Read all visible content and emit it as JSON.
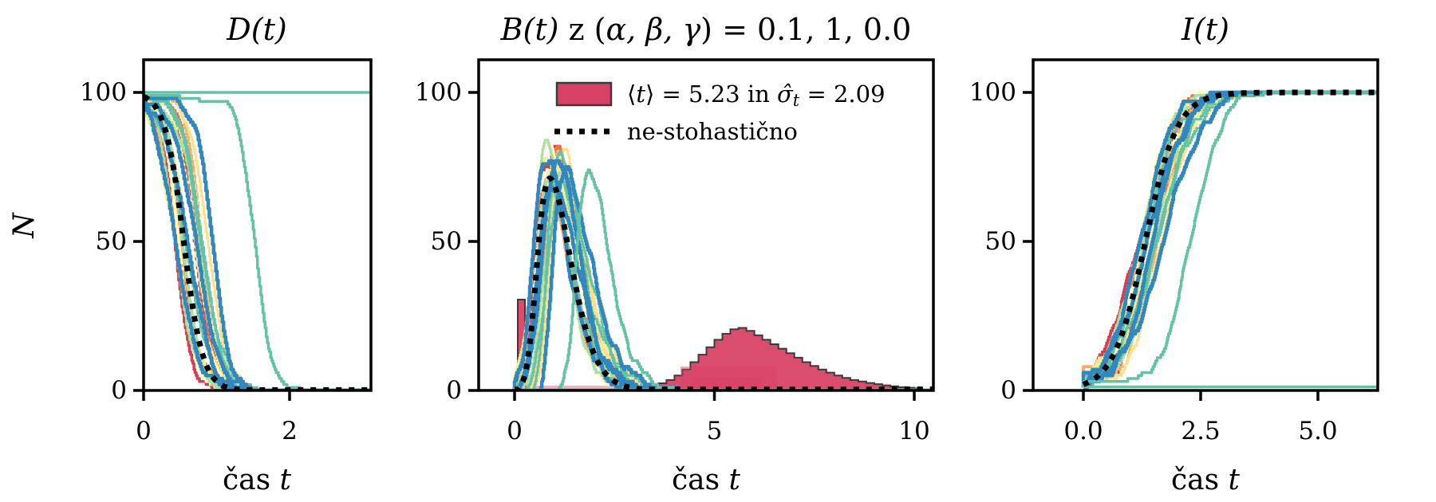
{
  "figure": {
    "background": "#ffffff"
  },
  "ylabel": "N",
  "chart_data": [
    {
      "id": "D",
      "type": "line",
      "title": "D(t)",
      "xlabel_parts": [
        "čas ",
        "t"
      ],
      "ylabel": "N",
      "xlim": [
        0,
        3.12
      ],
      "ylim": [
        0,
        110
      ],
      "xticks": [
        {
          "v": 0,
          "label": "0"
        },
        {
          "v": 2,
          "label": "2"
        }
      ],
      "yticks": [
        {
          "v": 0,
          "label": "0"
        },
        {
          "v": 50,
          "label": "50"
        },
        {
          "v": 100,
          "label": "100"
        }
      ],
      "deterministic_curve": [
        [
          0,
          98.6
        ],
        [
          0.25,
          91.0
        ],
        [
          0.5,
          59.5
        ],
        [
          0.75,
          17.7
        ],
        [
          1.0,
          3.0
        ],
        [
          1.25,
          0.5
        ],
        [
          1.5,
          0.1
        ],
        [
          2.0,
          0
        ],
        [
          2.5,
          0
        ],
        [
          3.0,
          0
        ]
      ]
    },
    {
      "id": "B",
      "type": "line+histogram",
      "title_parts": [
        "B(t)",
        " z (",
        "α, β, γ",
        ") = 0.1, 1, 0.0"
      ],
      "xlabel_parts": [
        "čas ",
        "t"
      ],
      "xlim": [
        -0.9,
        10.48
      ],
      "ylim": [
        0,
        110
      ],
      "xticks": [
        {
          "v": 0,
          "label": "0"
        },
        {
          "v": 5,
          "label": "5"
        },
        {
          "v": 10,
          "label": "10"
        }
      ],
      "yticks": [
        {
          "v": 0,
          "label": "0"
        },
        {
          "v": 50,
          "label": "50"
        },
        {
          "v": 100,
          "label": "100"
        }
      ],
      "deterministic_curve": [
        [
          0,
          1.0
        ],
        [
          0.25,
          4.9
        ],
        [
          0.5,
          32.2
        ],
        [
          0.75,
          66.6
        ],
        [
          1.0,
          68.9
        ],
        [
          1.25,
          54.7
        ],
        [
          1.5,
          37.0
        ],
        [
          2.0,
          10.6
        ],
        [
          2.5,
          3.0
        ],
        [
          3.0,
          0.7
        ],
        [
          4.0,
          0.1
        ],
        [
          5.0,
          0
        ],
        [
          6.0,
          0
        ],
        [
          8.0,
          0
        ],
        [
          10.0,
          0
        ]
      ],
      "histogram": {
        "mean": 5.23,
        "std": 2.09,
        "bin_start": 3.0,
        "bin_width": 0.2,
        "heights": [
          0.5,
          1,
          1.6,
          2.4,
          3.5,
          5,
          7,
          9.5,
          12,
          14.5,
          17,
          19,
          20.5,
          21,
          20,
          18.5,
          17,
          15.5,
          14,
          12.5,
          11,
          9.5,
          8.2,
          7,
          6,
          5,
          4.2,
          3.5,
          3,
          2.5,
          2.1,
          1.7,
          1.4,
          1.1,
          0.9,
          0.7
        ],
        "spike": {
          "x0": 0.08,
          "x1": 0.26,
          "height": 30.5
        },
        "overlays": [
          {
            "x0": 4.15,
            "x1": 6.55,
            "height": 8,
            "opacity": 0.45
          },
          {
            "x0": 4.45,
            "x1": 6.2,
            "height": 4.5,
            "opacity": 0.5
          },
          {
            "x0": 0.3,
            "x1": 4.15,
            "height": 1.6,
            "opacity": 0.4
          }
        ]
      },
      "legend": {
        "entry1_parts": [
          "⟨",
          "t",
          "⟩ = 5.23 in ",
          "σ̂",
          "t",
          " = 2.09"
        ],
        "entry2_label": "ne-stohastično"
      }
    },
    {
      "id": "I",
      "type": "line",
      "title": "I(t)",
      "xlabel_parts": [
        "čas ",
        "t"
      ],
      "xlim": [
        -1.07,
        6.28
      ],
      "ylim": [
        0,
        110
      ],
      "xticks": [
        {
          "v": 0,
          "label": "0.0"
        },
        {
          "v": 2.5,
          "label": "2.5"
        },
        {
          "v": 5,
          "label": "5.0"
        }
      ],
      "yticks": [
        {
          "v": 0,
          "label": "0"
        },
        {
          "v": 50,
          "label": "50"
        },
        {
          "v": 100,
          "label": "100"
        }
      ],
      "deterministic_curve": [
        [
          0,
          2.0
        ],
        [
          0.5,
          8.3
        ],
        [
          1.0,
          28.1
        ],
        [
          1.5,
          62.9
        ],
        [
          2.0,
          89.4
        ],
        [
          2.5,
          97.0
        ],
        [
          3.0,
          99.3
        ],
        [
          4.0,
          100
        ],
        [
          5.0,
          100
        ],
        [
          6.0,
          100
        ]
      ]
    }
  ],
  "ensemble": {
    "n_runs": 26,
    "model": {
      "t50_D": 0.55,
      "w_D": 0.13,
      "t50_I": 1.32,
      "w_I": 0.34,
      "N": 100
    },
    "outliers": {
      "flat_run_color": "#66c2a5",
      "delayed_run_tau": 0.97,
      "delayed_run_color": "#66c2a5"
    },
    "run_colors": [
      "#d53e4f",
      "#d53e4f",
      "#f46d43",
      "#f46d43",
      "#fdae61",
      "#fdae61",
      "#fee08b",
      "#fee08b",
      "#fee08b",
      "#ffffbf",
      "#ffffbf",
      "#e6f598",
      "#e6f598",
      "#e6f598",
      "#abdda4",
      "#abdda4",
      "#abdda4",
      "#66c2a5",
      "#66c2a5",
      "#66c2a5",
      "#3288bd",
      "#3288bd",
      "#3288bd",
      "#3288bd"
    ]
  },
  "colors": {
    "crimson": "#d84064",
    "hist_edge": "#3a3a3a",
    "deterministic": "#000000",
    "axes": "#000000"
  }
}
